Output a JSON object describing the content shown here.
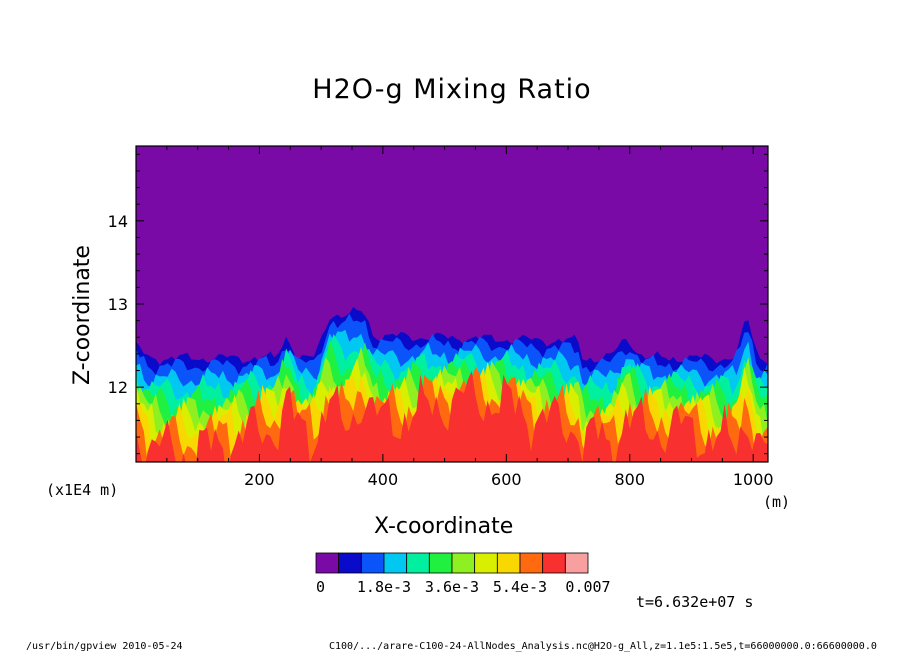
{
  "chart_data": {
    "type": "heatmap",
    "title": "H2O-g Mixing Ratio",
    "xlabel": "X-coordinate",
    "ylabel": "Z-coordinate",
    "x_units": "(m)",
    "y_units": "(x1E4 m)",
    "xlim": [
      0,
      1024
    ],
    "ylim": [
      11.1,
      14.9
    ],
    "x_ticks": [
      200,
      400,
      600,
      800,
      1000
    ],
    "y_ticks": [
      12,
      13,
      14
    ],
    "colorbar": {
      "levels": [
        0,
        0.0006,
        0.0012,
        0.0018,
        0.0024,
        0.003,
        0.0036,
        0.0042,
        0.0048,
        0.0054,
        0.006,
        0.0066,
        0.007
      ],
      "labels": [
        "0",
        "1.8e-3",
        "3.6e-3",
        "5.4e-3",
        "0.007"
      ],
      "colors": [
        "#7a0aa6",
        "#0a0acb",
        "#0a54fa",
        "#00c8f0",
        "#00f0a0",
        "#20f040",
        "#8ef020",
        "#d8f000",
        "#f8d800",
        "#ff6a10",
        "#f83030",
        "#f8a0a0"
      ]
    },
    "time_label": "t=6.632e+07 s",
    "grid": false
  },
  "footer": {
    "left": "/usr/bin/gpview  2010-05-24",
    "right": "C100/.../arare-C100-24-AllNodes_Analysis.nc@H2O-g_All,z=1.1e5:1.5e5,t=66000000.0:66600000.0"
  }
}
